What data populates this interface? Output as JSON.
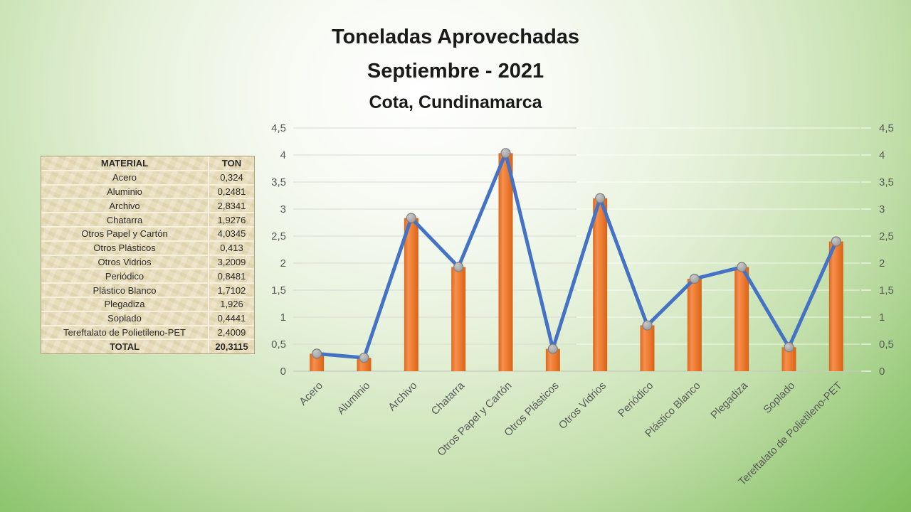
{
  "title": {
    "line1": "Toneladas Aprovechadas",
    "line2": "Septiembre - 2021",
    "line3": "Cota, Cundinamarca"
  },
  "table": {
    "headers": [
      "MATERIAL",
      "TON"
    ],
    "rows": [
      [
        "Acero",
        "0,324"
      ],
      [
        "Aluminio",
        "0,2481"
      ],
      [
        "Archivo",
        "2,8341"
      ],
      [
        "Chatarra",
        "1,9276"
      ],
      [
        "Otros Papel y Cartón",
        "4,0345"
      ],
      [
        "Otros Plásticos",
        "0,413"
      ],
      [
        "Otros Vidrios",
        "3,2009"
      ],
      [
        "Periódico",
        "0,8481"
      ],
      [
        "Plástico Blanco",
        "1,7102"
      ],
      [
        "Plegadiza",
        "1,926"
      ],
      [
        "Soplado",
        "0,4441"
      ],
      [
        "Tereftalato de Polietileno-PET",
        "2,4009"
      ]
    ],
    "total": [
      "TOTAL",
      "20,3115"
    ]
  },
  "chart_data": {
    "type": "bar",
    "overlay": "line",
    "title": "Toneladas Aprovechadas Septiembre - 2021, Cota, Cundinamarca",
    "categories": [
      "Acero",
      "Aluminio",
      "Archivo",
      "Chatarra",
      "Otros Papel y Cartón",
      "Otros Plásticos",
      "Otros Vidrios",
      "Periódico",
      "Plástico Blanco",
      "Plegadiza",
      "Soplado",
      "Tereftalato de Polietileno-PET"
    ],
    "series": [
      {
        "name": "TON (barras)",
        "type": "bar",
        "values": [
          0.324,
          0.2481,
          2.8341,
          1.9276,
          4.0345,
          0.413,
          3.2009,
          0.8481,
          1.7102,
          1.926,
          0.4441,
          2.4009
        ]
      },
      {
        "name": "TON (línea)",
        "type": "line",
        "values": [
          0.324,
          0.2481,
          2.8341,
          1.9276,
          4.0345,
          0.413,
          3.2009,
          0.8481,
          1.7102,
          1.926,
          0.4441,
          2.4009
        ]
      }
    ],
    "xlabel": "",
    "ylabel": "",
    "ylim": [
      0,
      4.5
    ],
    "ytick_step": 0.5,
    "ytick_labels": [
      "0",
      "0,5",
      "1",
      "1,5",
      "2",
      "2,5",
      "3",
      "3,5",
      "4",
      "4,5"
    ],
    "grid": true,
    "dual_y_axis": true,
    "legend": "none",
    "colors": {
      "bar": "#ED7D31",
      "line": "#4472C4",
      "marker": "#A6A6A6",
      "axis_text": "#595959"
    }
  }
}
